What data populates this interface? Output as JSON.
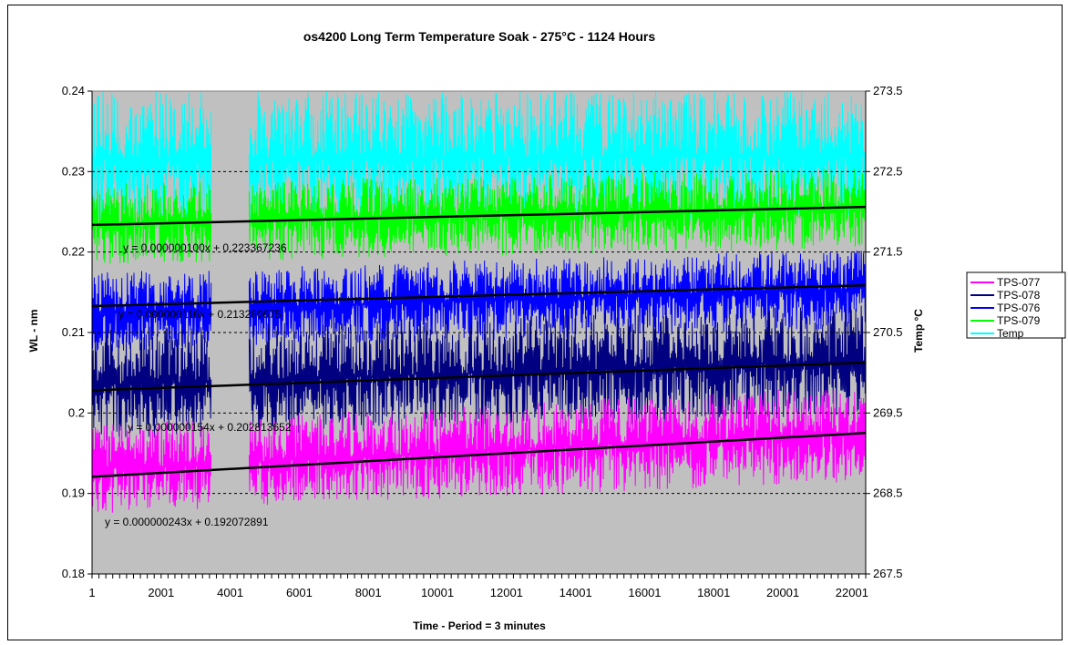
{
  "chart_data": {
    "type": "line",
    "title": "os4200 Long Term Temperature Soak - 275°C - 1124 Hours",
    "xlabel": "Time - Period = 3 minutes",
    "ylabel": "WL - nm",
    "y2label": "Temp °C",
    "x_ticks": [
      "1",
      "2001",
      "4001",
      "6001",
      "8001",
      "10001",
      "12001",
      "14001",
      "16001",
      "18001",
      "20001",
      "22001"
    ],
    "xlim": [
      1,
      22400
    ],
    "ylim": [
      0.18,
      0.24
    ],
    "y_ticks": [
      "0.18",
      "0.19",
      "0.2",
      "0.21",
      "0.22",
      "0.23",
      "0.24"
    ],
    "y2lim": [
      267.5,
      273.5
    ],
    "y2_ticks": [
      "267.5",
      "268.5",
      "269.5",
      "270.5",
      "271.5",
      "272.5",
      "273.5"
    ],
    "grid": true,
    "plot_background": "#c0c0c0",
    "legend_position": "right",
    "gap": [
      3450,
      4550
    ],
    "series": [
      {
        "name": "TPS-077",
        "color": "#ff00ff",
        "axis": "left",
        "band_start": [
          0.1875,
          0.1985
        ],
        "band_end": [
          0.1915,
          0.2035
        ]
      },
      {
        "name": "TPS-078",
        "color": "#000080",
        "axis": "left",
        "band_start": [
          0.1965,
          0.2105
        ],
        "band_end": [
          0.1995,
          0.2135
        ]
      },
      {
        "name": "TPS-076",
        "color": "#0000ff",
        "axis": "left",
        "band_start": [
          0.2075,
          0.2175
        ],
        "band_end": [
          0.2105,
          0.2205
        ]
      },
      {
        "name": "TPS-079",
        "color": "#00ff00",
        "axis": "left",
        "band_start": [
          0.2185,
          0.2285
        ],
        "band_end": [
          0.2205,
          0.2305
        ]
      },
      {
        "name": "Temp",
        "color": "#00ffff",
        "axis": "right",
        "band_start": [
          271.8,
          273.5
        ],
        "band_end": [
          271.9,
          273.5
        ]
      }
    ],
    "trendlines": [
      {
        "slope": 1e-07,
        "intercept": 0.223367236,
        "label": "y = 0.000000100x + 0.223367236"
      },
      {
        "slope": 1.16e-07,
        "intercept": 0.213280675,
        "label": "y = 0.000000116x + 0.213280675"
      },
      {
        "slope": 1.54e-07,
        "intercept": 0.202813652,
        "label": "y = 0.000000154x + 0.202813652"
      },
      {
        "slope": 2.43e-07,
        "intercept": 0.192072891,
        "label": "y = 0.000000243x + 0.192072891"
      }
    ]
  }
}
